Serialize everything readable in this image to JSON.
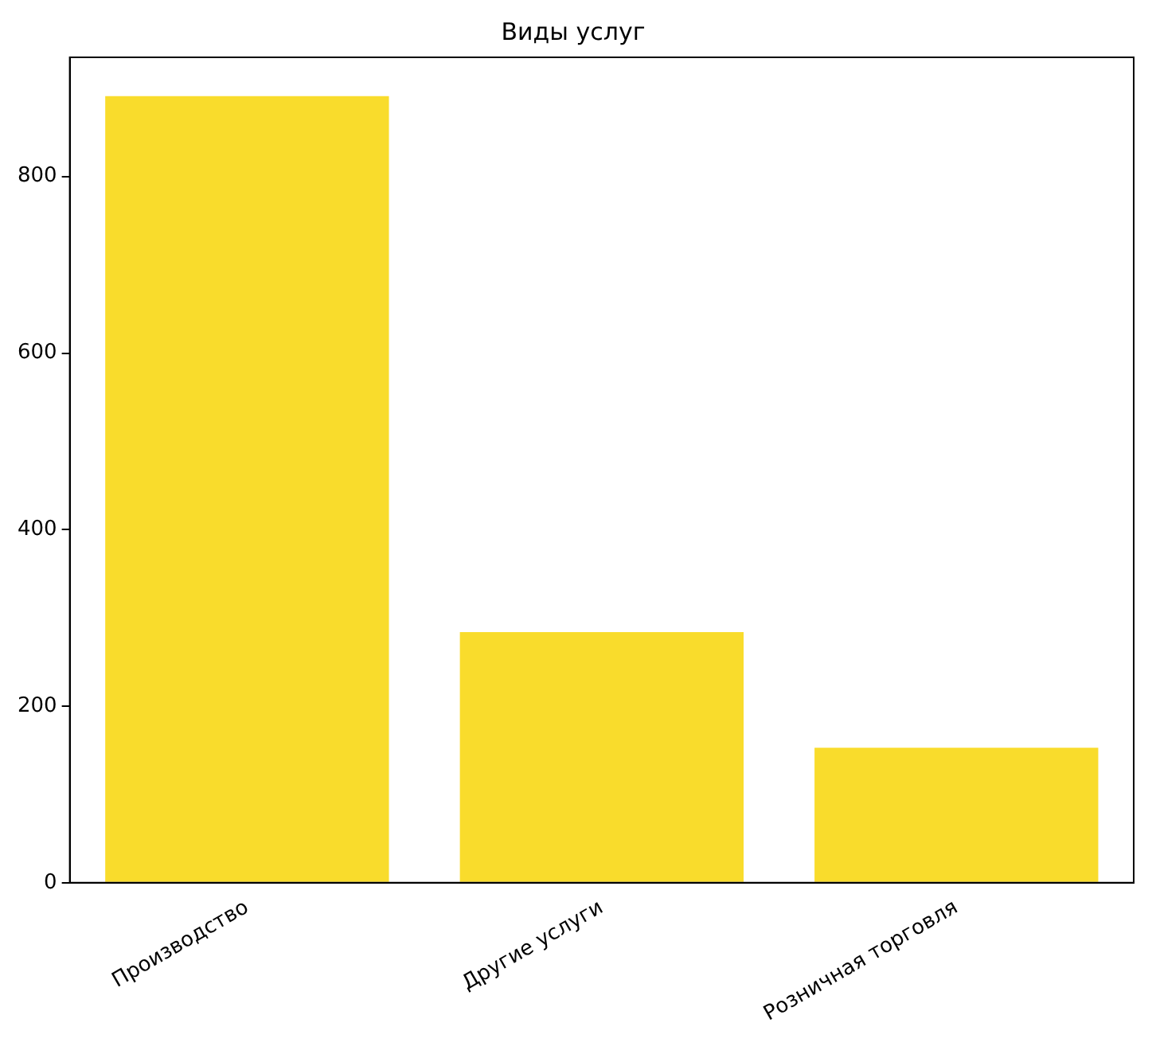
{
  "chart_data": {
    "type": "bar",
    "title": "Виды услуг",
    "categories": [
      "Производство",
      "Другие услуги",
      "Розничная торговля"
    ],
    "values": [
      891,
      284,
      153
    ],
    "color": "#f9dc2c",
    "ylim": [
      0,
      935
    ],
    "yticks": [
      0,
      200,
      400,
      600,
      800
    ],
    "grid": false
  }
}
